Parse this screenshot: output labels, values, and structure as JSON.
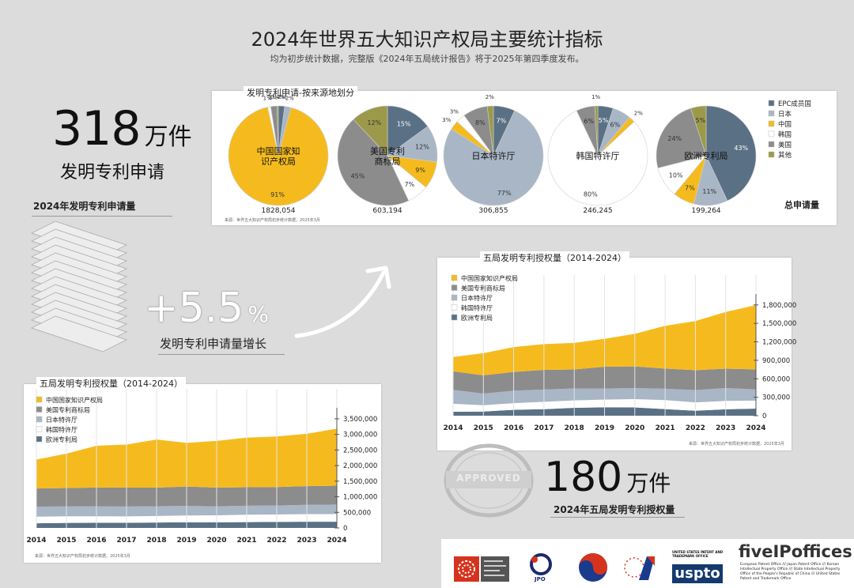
{
  "page": {
    "title": "2024年世界五大知识产权局主要统计指标",
    "subtitle": "均为初步统计数据，完整版《2024年五局统计报告》将于2025年第四季度发布。"
  },
  "stats": {
    "apps_number": "318",
    "apps_unit": "万件",
    "apps_desc": "发明专利申请",
    "apps_caption": "2024年发明专利申请量",
    "growth_value": "+5.5",
    "growth_unit": "%",
    "growth_caption": "发明专利申请量增长",
    "grants_number": "180",
    "grants_unit": "万件",
    "grants_caption": "2024年五局发明专利授权量",
    "stamp": "APPROVED"
  },
  "footer": {
    "fiveipoffices": "fiveIPoffices",
    "offices_text": "European Patent Office /// Japan Patent Office /// Korean Intellectual Property Office /// State Intellectual Property Office of the People's Republic of China /// United States Patent and Trademark Office",
    "uspto_small": "UNITED STATES PATENT AND TRADEMARK OFFICE",
    "uspto": "uspto",
    "jpo": "JPO"
  },
  "colors": {
    "EPC": "#5a7185",
    "JP": "#a8b6c6",
    "CN": "#f5bb1e",
    "KR": "#ffffff",
    "US": "#8c8c8c",
    "OTHER": "#9c9a4a"
  },
  "chart_data": [
    {
      "type": "pie",
      "title": "发明专利申请-按来源地划分",
      "legend": [
        "EPC成员国",
        "日本",
        "中国",
        "韩国",
        "美国",
        "其他"
      ],
      "series_keys": [
        "EPC",
        "JP",
        "CN",
        "KR",
        "US",
        "OTHER"
      ],
      "total_label": "总申请量",
      "source_note": "来源：世界五大知识产权局初步统计数据，2025年3月",
      "pies": [
        {
          "office": "中国国家知识产权局",
          "total": "1828,054",
          "slices": {
            "EPC": 2,
            "JP": 2,
            "CN": 91,
            "KR": 1,
            "US": 2,
            "OTHER": 0.4
          }
        },
        {
          "office": "美国专利商标局",
          "total": "603,194",
          "slices": {
            "EPC": 15,
            "JP": 12,
            "CN": 9,
            "KR": 7,
            "US": 45,
            "OTHER": 12
          }
        },
        {
          "office": "日本特许厅",
          "total": "306,855",
          "slices": {
            "EPC": 7,
            "JP": 77,
            "CN": 3,
            "KR": 3,
            "US": 8,
            "OTHER": 2
          }
        },
        {
          "office": "韩国特许厅",
          "total": "246,245",
          "slices": {
            "EPC": 5,
            "JP": 6,
            "CN": 2,
            "KR": 80,
            "US": 6,
            "OTHER": 1
          }
        },
        {
          "office": "欧洲专利局",
          "total": "199,264",
          "slices": {
            "EPC": 43,
            "JP": 11,
            "CN": 7,
            "KR": 10,
            "US": 24,
            "OTHER": 5
          }
        }
      ]
    },
    {
      "type": "area",
      "title": "五局发明专利授权量（2014-2024）",
      "x": [
        2014,
        2015,
        2016,
        2017,
        2018,
        2019,
        2020,
        2021,
        2022,
        2023,
        2024
      ],
      "ylim": [
        0,
        1900000
      ],
      "yticks": [
        "0",
        "300,000",
        "600,000",
        "900,000",
        "1,200,000",
        "1,500,000",
        "1,800,000"
      ],
      "source_note": "来源：世界五大知识产权局初步统计数据，2025年3月",
      "series": [
        {
          "name": "欧洲专利局",
          "key": "EPC",
          "values": [
            64000,
            68000,
            96000,
            106000,
            128000,
            137000,
            134000,
            108000,
            81000,
            105000,
            115000
          ]
        },
        {
          "name": "韩国特许厅",
          "key": "KR",
          "values": [
            130000,
            102000,
            108000,
            120000,
            120000,
            125000,
            135000,
            145000,
            135000,
            135000,
            130000
          ]
        },
        {
          "name": "日本特许厅",
          "key": "JP",
          "values": [
            227000,
            189000,
            203000,
            200000,
            195000,
            180000,
            180000,
            185000,
            201000,
            209000,
            183000
          ]
        },
        {
          "name": "美国专利商标局",
          "key": "US",
          "values": [
            300000,
            298000,
            304000,
            318000,
            308000,
            354000,
            352000,
            327000,
            323000,
            315000,
            324000
          ]
        },
        {
          "name": "中国国家知识产权局",
          "key": "CN",
          "values": [
            233000,
            359000,
            404000,
            420000,
            432000,
            453000,
            530000,
            696000,
            798000,
            921000,
            1045000
          ]
        }
      ]
    },
    {
      "type": "area",
      "title": "五局发明专利授权量（2014-2024）",
      "x": [
        2014,
        2015,
        2016,
        2017,
        2018,
        2019,
        2020,
        2021,
        2022,
        2023,
        2024
      ],
      "ylim": [
        0,
        3700000
      ],
      "yticks": [
        "0",
        "500,000",
        "1,000,000",
        "1,500,000",
        "2,000,000",
        "2,500,000",
        "3,000,000",
        "3,500,000"
      ],
      "source_note": "来源：世界五大知识产权局初步统计数据，2025年3月",
      "series": [
        {
          "name": "欧洲专利局",
          "key": "EPC",
          "values": [
            150000,
            160000,
            165000,
            166000,
            175000,
            182000,
            180000,
            188000,
            193000,
            199000,
            199000
          ]
        },
        {
          "name": "韩国特许厅",
          "key": "KR",
          "values": [
            210000,
            213000,
            208000,
            204000,
            209000,
            218000,
            227000,
            237000,
            237000,
            243000,
            246000
          ]
        },
        {
          "name": "日本特许厅",
          "key": "JP",
          "values": [
            325000,
            318000,
            318000,
            318000,
            313000,
            307000,
            288000,
            289000,
            289000,
            300000,
            307000
          ]
        },
        {
          "name": "美国专利商标局",
          "key": "US",
          "values": [
            578000,
            590000,
            605000,
            606000,
            597000,
            621000,
            597000,
            591000,
            594000,
            598000,
            603000
          ]
        },
        {
          "name": "中国国家知识产权局",
          "key": "CN",
          "values": [
            928000,
            1100000,
            1340000,
            1380000,
            1540000,
            1400000,
            1500000,
            1590000,
            1620000,
            1680000,
            1828000
          ]
        }
      ]
    }
  ]
}
